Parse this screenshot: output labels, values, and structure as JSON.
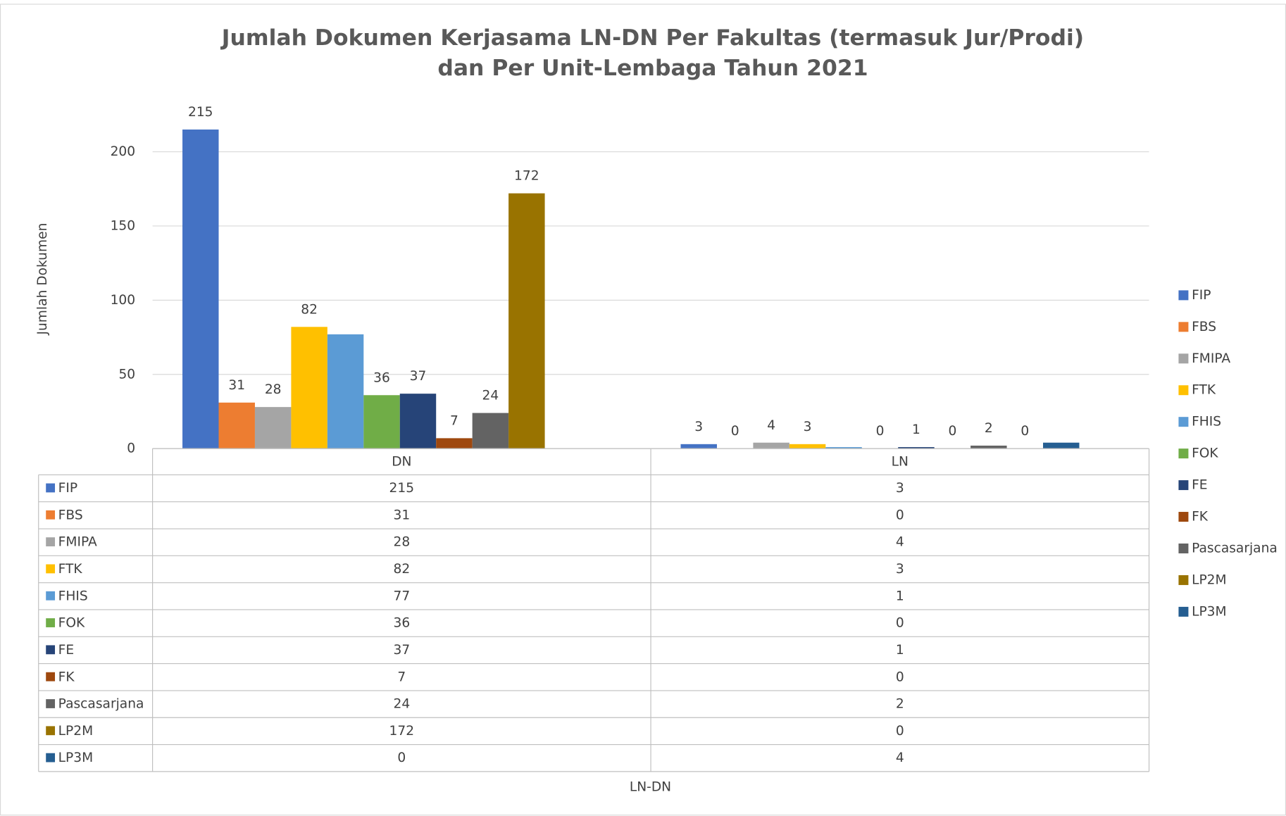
{
  "chart_data": {
    "type": "bar",
    "title": [
      "Jumlah Dokumen Kerjasama LN-DN Per Fakultas (termasuk Jur/Prodi)",
      "dan Per Unit-Lembaga Tahun 2021"
    ],
    "y_label": "Jumlah Dokumen",
    "x_label": "LN-DN",
    "categories": [
      "DN",
      "LN"
    ],
    "ylim": [
      0,
      240
    ],
    "yticks": [
      0,
      50,
      100,
      150,
      200
    ],
    "grid": true,
    "legend": "right",
    "data_table": true,
    "series": [
      {
        "name": "FIP",
        "color": "#4472c4",
        "values": [
          215,
          3
        ],
        "value_labels": [
          "215",
          "3"
        ]
      },
      {
        "name": "FBS",
        "color": "#ed7d31",
        "values": [
          31,
          0
        ],
        "value_labels": [
          "31",
          "0"
        ]
      },
      {
        "name": "FMIPA",
        "color": "#a5a5a5",
        "values": [
          28,
          4
        ],
        "value_labels": [
          "28",
          "4"
        ]
      },
      {
        "name": "FTK",
        "color": "#ffc000",
        "values": [
          82,
          3
        ],
        "value_labels": [
          "82",
          "3"
        ]
      },
      {
        "name": "FHIS",
        "color": "#5b9bd5",
        "values": [
          77,
          1
        ],
        "value_labels": [
          null,
          null
        ]
      },
      {
        "name": "FOK",
        "color": "#70ad47",
        "values": [
          36,
          0
        ],
        "value_labels": [
          "36",
          "0"
        ]
      },
      {
        "name": "FE",
        "color": "#264478",
        "values": [
          37,
          1
        ],
        "value_labels": [
          "37",
          "1"
        ]
      },
      {
        "name": "FK",
        "color": "#9e480e",
        "values": [
          7,
          0
        ],
        "value_labels": [
          "7",
          "0"
        ]
      },
      {
        "name": "Pascasarjana",
        "color": "#636363",
        "values": [
          24,
          2
        ],
        "value_labels": [
          "24",
          "2"
        ]
      },
      {
        "name": "LP2M",
        "color": "#997300",
        "values": [
          172,
          0
        ],
        "value_labels": [
          "172",
          "0"
        ]
      },
      {
        "name": "LP3M",
        "color": "#255e91",
        "values": [
          0,
          4
        ],
        "value_labels": [
          null,
          null
        ]
      }
    ]
  }
}
